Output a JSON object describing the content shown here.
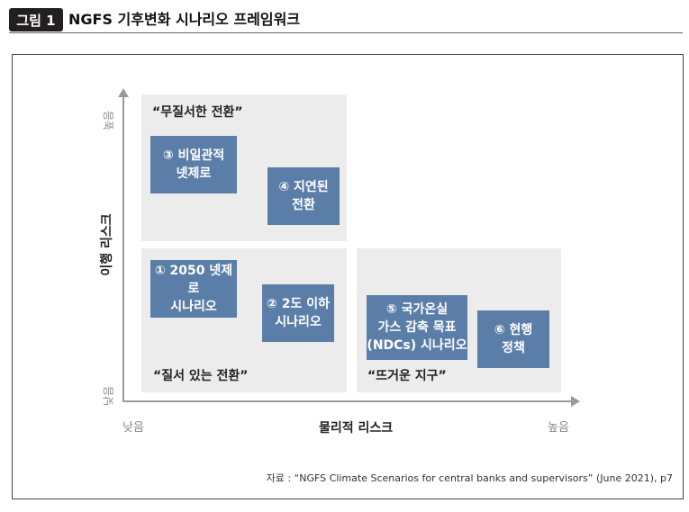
{
  "figure": {
    "label": "그림 1",
    "title": "NGFS 기후변화 시나리오 프레임워크"
  },
  "axes": {
    "x_title": "물리적 리스크",
    "x_low": "낮음",
    "x_high": "높음",
    "y_title": "이행 리스크",
    "y_low": "낮음",
    "y_high": "높음"
  },
  "quadrants": {
    "top_left": "“무질서한 전환”",
    "bottom_left": "“질서 있는 전환”",
    "bottom_right": "“뜨거운 지구”"
  },
  "scenarios": {
    "s1": {
      "line1": "① 2050 넷제로",
      "line2": "시나리오"
    },
    "s2": {
      "line1": "② 2도 이하",
      "line2": "시나리오"
    },
    "s3": {
      "line1": "③ 비일관적",
      "line2": "넷제로"
    },
    "s4": {
      "line1": "④ 지연된",
      "line2": "전환"
    },
    "s5": {
      "line1": "⑤ 국가온실",
      "line2": "가스 감축 목표",
      "line3": "(NDCs) 시나리오"
    },
    "s6": {
      "line1": "⑥ 현행",
      "line2": "정책"
    }
  },
  "source": "자료 : “NGFS Climate Scenarios for central banks and supervisors” (June 2021), p7",
  "colors": {
    "scenario_box": "#5b7ea8",
    "panel": "#ececec",
    "axis": "#9a9a9a"
  }
}
